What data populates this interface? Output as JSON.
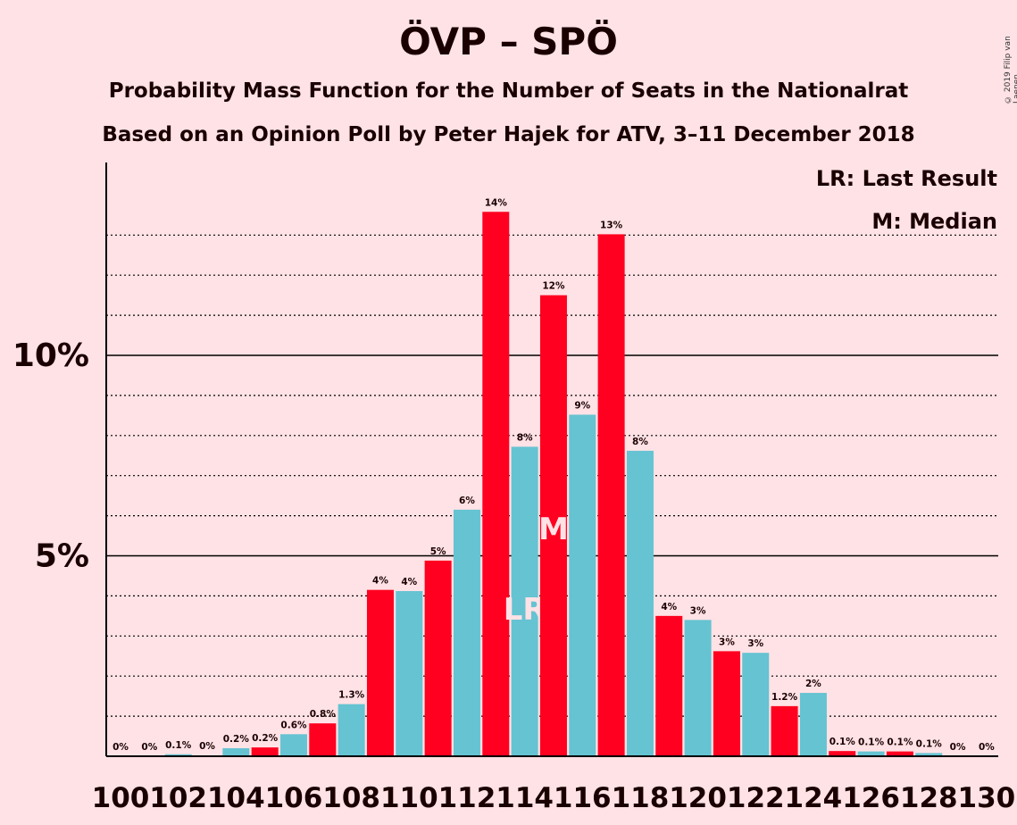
{
  "chart_data": {
    "type": "bar",
    "title": "ÖVP – SPÖ",
    "subtitle": "Probability Mass Function for the Number of Seats in the Nationalrat",
    "subtitle2": "Based on an Opinion Poll by Peter Hajek for ATV, 3–11 December 2018",
    "copyright": "© 2019 Filip van Laenen",
    "legend": {
      "lr": "LR: Last Result",
      "m": "M: Median",
      "placement": "top-right"
    },
    "ylim": [
      0,
      14.8
    ],
    "yticks": [
      {
        "value": 5,
        "label": "5%"
      },
      {
        "value": 10,
        "label": "10%"
      }
    ],
    "xtick_labels": [
      "100",
      "102",
      "104",
      "106",
      "108",
      "110",
      "112",
      "114",
      "116",
      "118",
      "120",
      "122",
      "124",
      "126",
      "128",
      "130"
    ],
    "colors": {
      "red": "#FF0020",
      "cyan": "#65C3D2",
      "axis": "#000000"
    },
    "bars": [
      {
        "x": 100,
        "value": 0,
        "label": "0%",
        "color": "cyan"
      },
      {
        "x": 101,
        "value": 0,
        "label": "0%",
        "color": "red"
      },
      {
        "x": 102,
        "value": 0.05,
        "label": "0.1%",
        "color": "cyan"
      },
      {
        "x": 103,
        "value": 0.02,
        "label": "0%",
        "color": "red"
      },
      {
        "x": 104,
        "value": 0.2,
        "label": "0.2%",
        "color": "cyan"
      },
      {
        "x": 105,
        "value": 0.22,
        "label": "0.2%",
        "color": "red"
      },
      {
        "x": 106,
        "value": 0.55,
        "label": "0.6%",
        "color": "cyan"
      },
      {
        "x": 107,
        "value": 0.82,
        "label": "0.8%",
        "color": "red"
      },
      {
        "x": 108,
        "value": 1.3,
        "label": "1.3%",
        "color": "cyan"
      },
      {
        "x": 109,
        "value": 4.15,
        "label": "4%",
        "color": "red"
      },
      {
        "x": 110,
        "value": 4.12,
        "label": "4%",
        "color": "cyan"
      },
      {
        "x": 111,
        "value": 4.88,
        "label": "5%",
        "color": "red"
      },
      {
        "x": 112,
        "value": 6.15,
        "label": "6%",
        "color": "cyan"
      },
      {
        "x": 113,
        "value": 13.58,
        "label": "14%",
        "color": "red"
      },
      {
        "x": 114,
        "value": 7.72,
        "label": "8%",
        "color": "cyan",
        "marker": "LR"
      },
      {
        "x": 115,
        "value": 11.5,
        "label": "12%",
        "color": "red",
        "marker": "M"
      },
      {
        "x": 116,
        "value": 8.52,
        "label": "9%",
        "color": "cyan"
      },
      {
        "x": 117,
        "value": 13.02,
        "label": "13%",
        "color": "red"
      },
      {
        "x": 118,
        "value": 7.62,
        "label": "8%",
        "color": "cyan"
      },
      {
        "x": 119,
        "value": 3.5,
        "label": "4%",
        "color": "red"
      },
      {
        "x": 120,
        "value": 3.4,
        "label": "3%",
        "color": "cyan"
      },
      {
        "x": 121,
        "value": 2.62,
        "label": "3%",
        "color": "red"
      },
      {
        "x": 122,
        "value": 2.58,
        "label": "3%",
        "color": "cyan"
      },
      {
        "x": 123,
        "value": 1.25,
        "label": "1.2%",
        "color": "red"
      },
      {
        "x": 124,
        "value": 1.58,
        "label": "2%",
        "color": "cyan"
      },
      {
        "x": 125,
        "value": 0.13,
        "label": "0.1%",
        "color": "red"
      },
      {
        "x": 126,
        "value": 0.12,
        "label": "0.1%",
        "color": "cyan"
      },
      {
        "x": 127,
        "value": 0.12,
        "label": "0.1%",
        "color": "red"
      },
      {
        "x": 128,
        "value": 0.08,
        "label": "0.1%",
        "color": "cyan"
      },
      {
        "x": 129,
        "value": 0,
        "label": "0%",
        "color": "red"
      },
      {
        "x": 130,
        "value": 0,
        "label": "0%",
        "color": "cyan"
      }
    ]
  }
}
